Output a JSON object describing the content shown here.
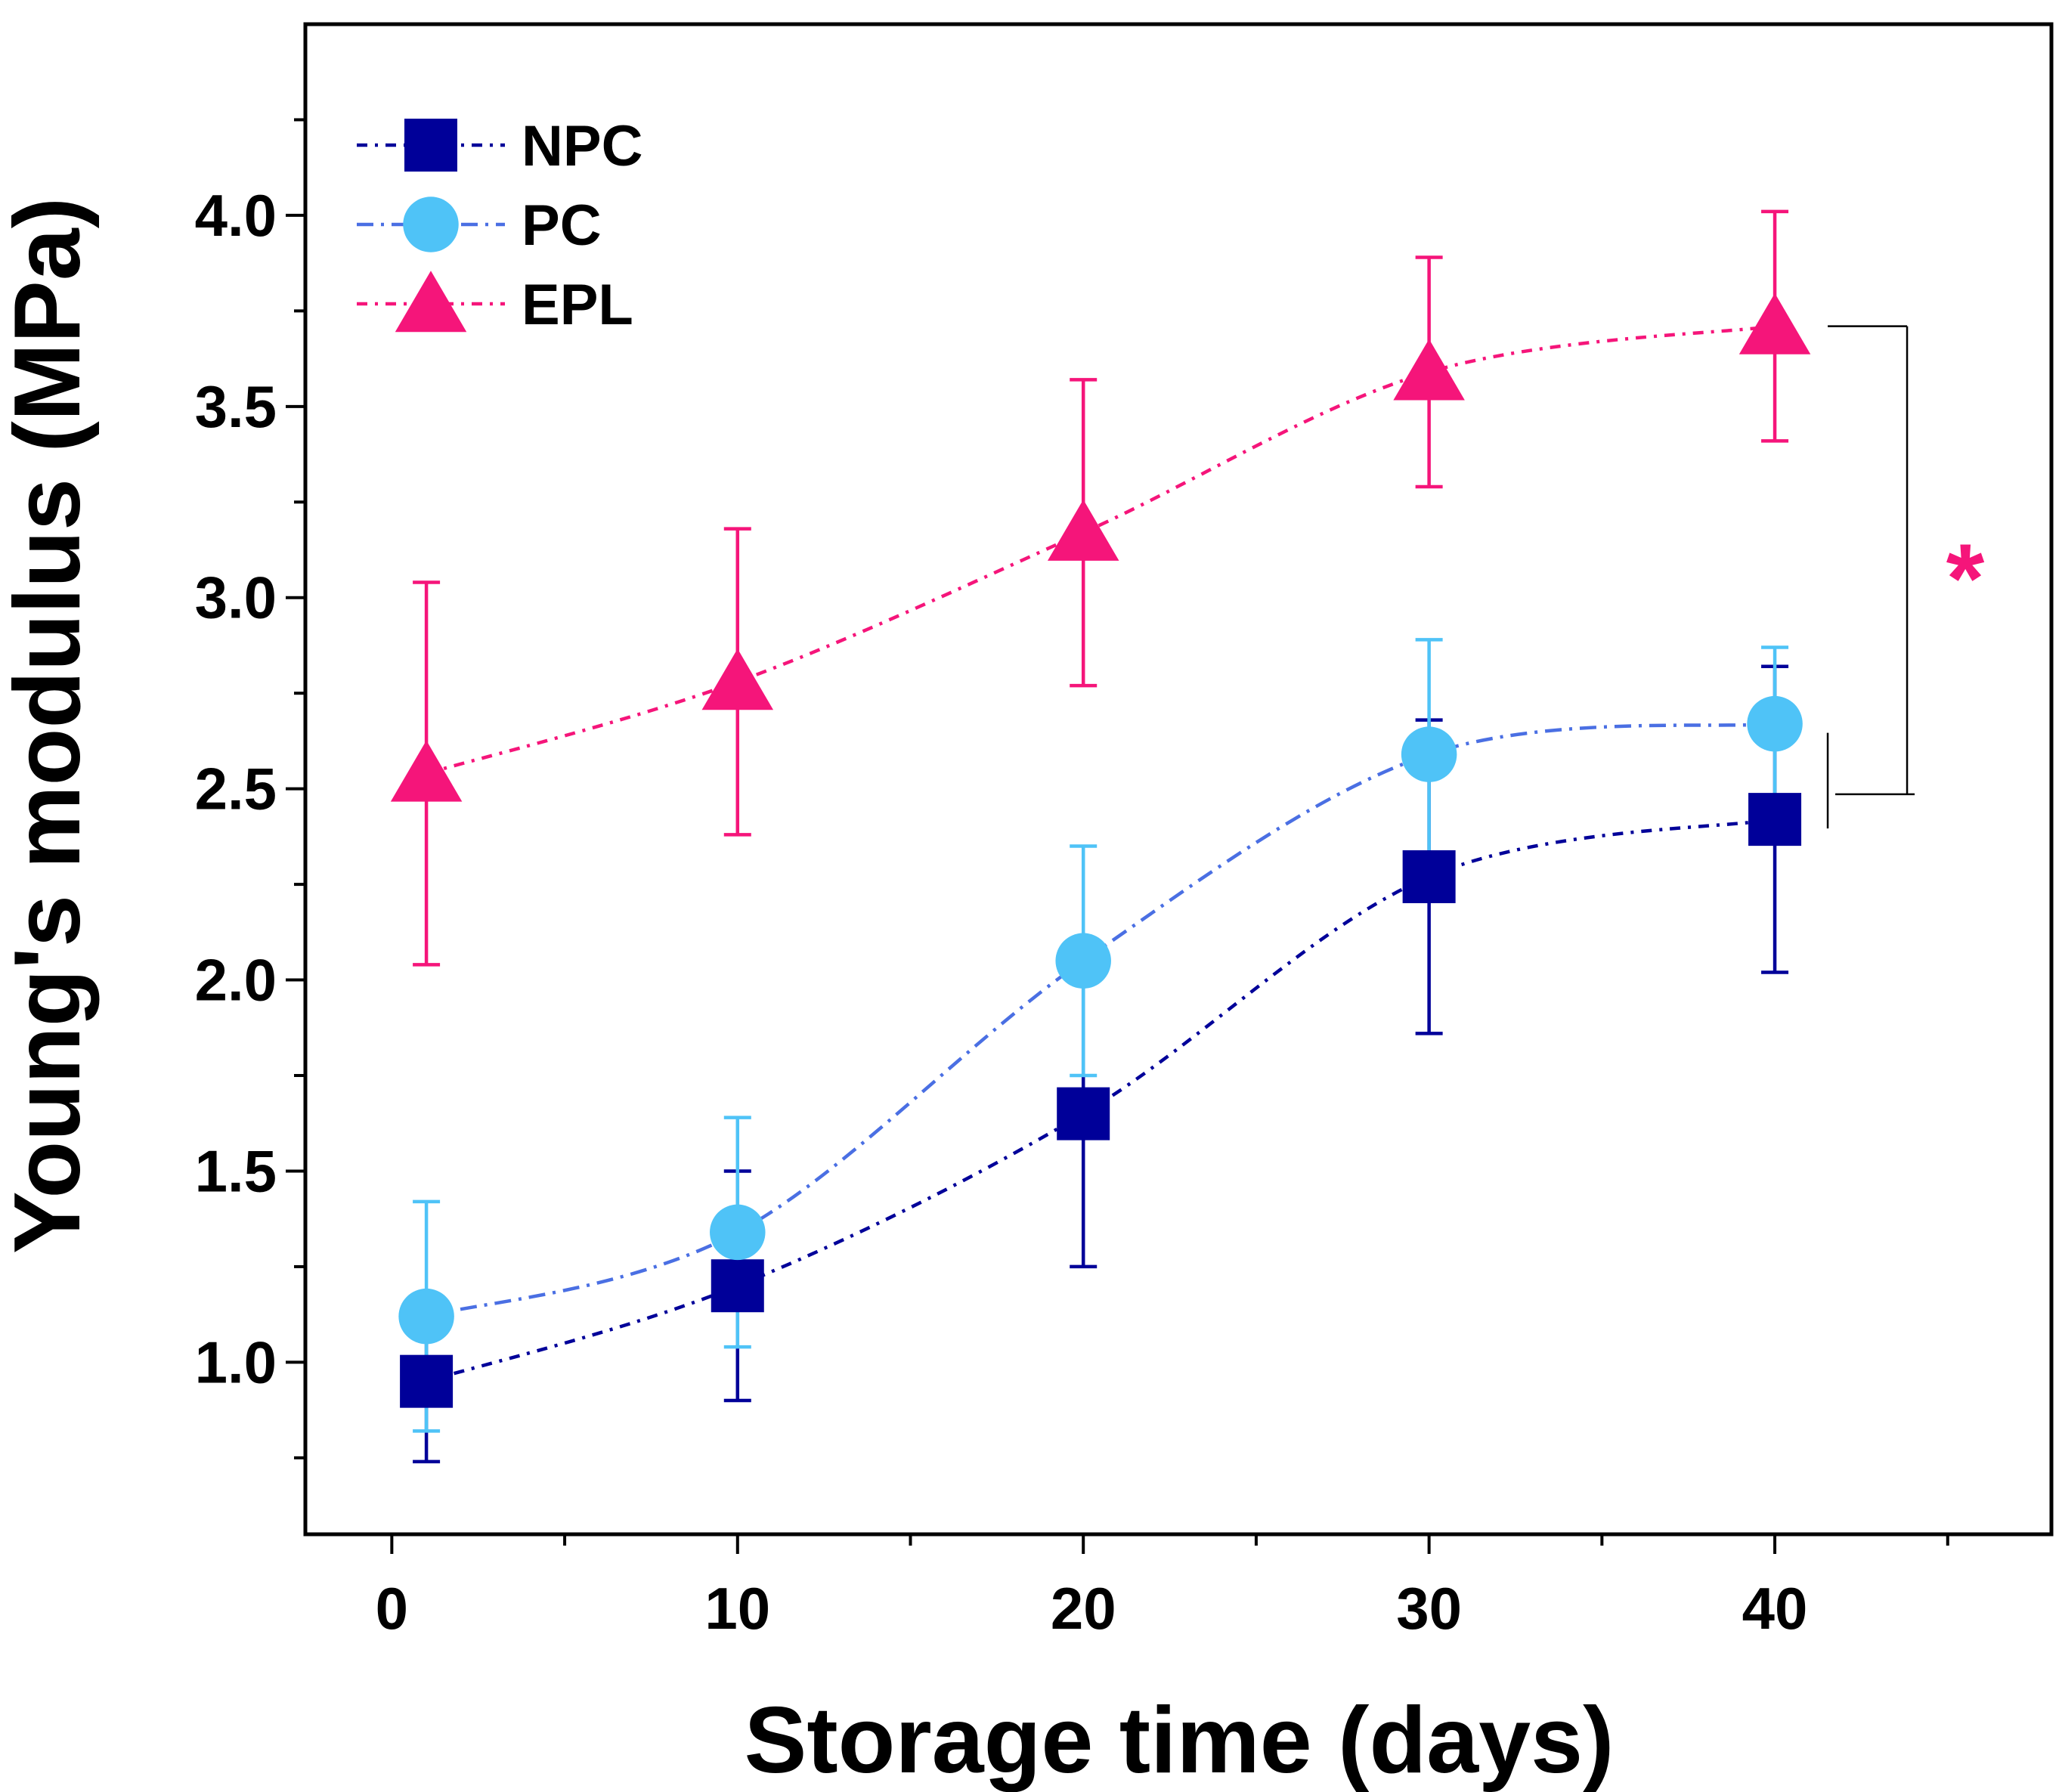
{
  "chart_data": {
    "type": "line",
    "title": "",
    "xlabel": "Storage time (days)",
    "ylabel": "Young's modulus (MPa)",
    "xlim": [
      -2.5,
      48
    ],
    "ylim": [
      0.55,
      4.5
    ],
    "xticks": [
      0,
      10,
      20,
      30,
      40
    ],
    "xtick_labels": [
      "0",
      "10",
      "20",
      "30",
      "40"
    ],
    "yticks": [
      1.0,
      1.5,
      2.0,
      2.5,
      3.0,
      3.5,
      4.0
    ],
    "ytick_labels": [
      "1.0",
      "1.5",
      "2.0",
      "2.5",
      "3.0",
      "3.5",
      "4.0"
    ],
    "x": [
      1,
      10,
      20,
      30,
      40
    ],
    "series": [
      {
        "name": "NPC",
        "color": "#000099",
        "marker": "square",
        "line": "dash-dot",
        "values": [
          0.95,
          1.2,
          1.65,
          2.27,
          2.42
        ],
        "errors": [
          0.21,
          0.3,
          0.4,
          0.41,
          0.4
        ]
      },
      {
        "name": "PC",
        "color": "#4fc3f7",
        "line_color": "#4a6fe3",
        "marker": "circle",
        "line": "dash-dot",
        "values": [
          1.12,
          1.34,
          2.05,
          2.59,
          2.67
        ],
        "errors": [
          0.3,
          0.3,
          0.3,
          0.3,
          0.2
        ]
      },
      {
        "name": "EPL",
        "color": "#f5157a",
        "marker": "triangle",
        "line": "dash-dot",
        "values": [
          2.54,
          2.78,
          3.17,
          3.59,
          3.71
        ],
        "errors": [
          0.5,
          0.4,
          0.4,
          0.3,
          0.3
        ]
      }
    ],
    "legend_position": "top-left",
    "annotations": [
      {
        "text": "*",
        "color": "#f5157a",
        "between": [
          "EPL",
          "PC/NPC"
        ],
        "at_x": 40
      }
    ]
  }
}
